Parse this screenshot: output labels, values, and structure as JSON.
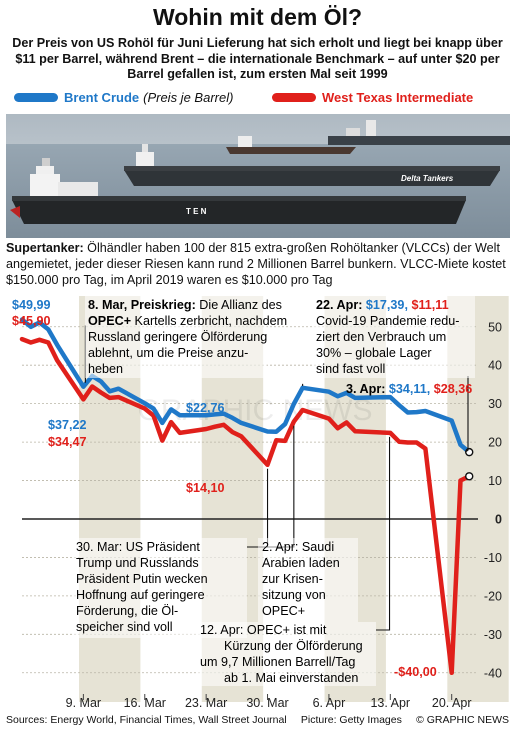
{
  "title": "Wohin mit dem Öl?",
  "subtitle": "Der Preis von US Rohöl für Juni Lieferung hat sich erholt und liegt bei knapp über $11 per Barrel, während Brent – die internationale Benchmark – auf unter $20 per Barrel gefallen ist, zum ersten Mal seit 1999",
  "legend": {
    "brent": "Brent Crude",
    "brent_note": "(Preis je Barrel)",
    "wti": "West Texas Intermediate"
  },
  "photo": {
    "ship_label_1": "Delta Tankers",
    "ship_label_2": "T  E  N"
  },
  "caption": {
    "lead": "Supertanker:",
    "text": " Ölhändler haben 100 der 815 extra-großen Rohöltanker (VLCCs) der Welt angemietet, jeder dieser Riesen kann rund 2 Millionen Barrel bunkern. VLCC-Miete kostet $150.000 pro Tag, im April 2019 waren es $10.000 pro Tag"
  },
  "annotations": {
    "a1_head": "8. Mar, Preiskrieg:",
    "a1_lines": [
      " Die Allianz des",
      "Kartells zerbricht, nachdem",
      "Russland geringere Ölförderung",
      "ablehnt, um die Preise anzu-",
      "heben"
    ],
    "a1_bold": "OPEC+",
    "a2_lines": [
      "30. Mar: US Präsident",
      "Trump und Russlands",
      "Präsident Putin wecken",
      "Hoffnung auf geringere",
      "Förderung, die Öl-",
      "speicher sind voll"
    ],
    "a3_lines": [
      "2. Apr: Saudi",
      "Arabien laden",
      "zur Krisen-",
      "sitzung von",
      "OPEC+"
    ],
    "a4_lines": [
      "12. Apr: OPEC+ ist mit",
      "Kürzung der Ölförderung",
      "um 9,7 Millionen Barrell/Tag",
      "ab 1. Mai einverstanden"
    ],
    "a5_head": "22. Apr:",
    "a5_brent": "$17,39,",
    "a5_wti": "$11,11",
    "a5_lines": [
      "Covid-19 Pandemie redu-",
      "ziert den Verbrauch um",
      "30% – globale Lager",
      "sind fast voll"
    ],
    "a6_head": "3. Apr:",
    "a6_brent": "$34,11,",
    "a6_wti": "$28,36"
  },
  "footer": {
    "sources": "Sources: Energy World, Financial Times, Wall Street Journal",
    "picture": "Picture: Getty Images",
    "credit": "© GRAPHIC NEWS"
  },
  "watermark": "GRAPHIC NEWS",
  "colors": {
    "brent": "#1f78c8",
    "wti": "#e0201b",
    "band": "#e6e3d5",
    "ship": "#2b2b2b"
  },
  "chart_data": {
    "type": "line",
    "ylim": [
      -45,
      58
    ],
    "yticks": [
      50,
      40,
      30,
      20,
      10,
      0,
      -10,
      -20,
      -30,
      -40
    ],
    "ytick_labels": [
      "50",
      "40",
      "30",
      "20",
      "10",
      "0",
      "-10",
      "-20",
      "-30",
      "-40"
    ],
    "x_labels": [
      "9. Mar",
      "16. Mar",
      "23. Mar",
      "30. Mar",
      "6. Apr",
      "13. Apr",
      "20. Apr"
    ],
    "x_label_dates": [
      "2020-03-09",
      "2020-03-16",
      "2020-03-23",
      "2020-03-30",
      "2020-04-06",
      "2020-04-13",
      "2020-04-20"
    ],
    "x_range": [
      "2020-03-02",
      "2020-04-23"
    ],
    "series": [
      {
        "name": "Brent Crude",
        "dates": [
          "2020-03-02",
          "2020-03-03",
          "2020-03-04",
          "2020-03-05",
          "2020-03-06",
          "2020-03-09",
          "2020-03-10",
          "2020-03-11",
          "2020-03-12",
          "2020-03-13",
          "2020-03-16",
          "2020-03-17",
          "2020-03-18",
          "2020-03-19",
          "2020-03-20",
          "2020-03-23",
          "2020-03-24",
          "2020-03-25",
          "2020-03-26",
          "2020-03-27",
          "2020-03-30",
          "2020-03-31",
          "2020-04-01",
          "2020-04-02",
          "2020-04-03",
          "2020-04-06",
          "2020-04-07",
          "2020-04-08",
          "2020-04-09",
          "2020-04-13",
          "2020-04-14",
          "2020-04-15",
          "2020-04-16",
          "2020-04-17",
          "2020-04-20",
          "2020-04-21",
          "2020-04-22"
        ],
        "values": [
          51.9,
          49.99,
          51.1,
          49.3,
          45.3,
          34.4,
          37.2,
          35.8,
          33.2,
          33.9,
          30.1,
          28.7,
          25.0,
          28.5,
          27.0,
          27.0,
          27.2,
          27.4,
          26.3,
          25.0,
          22.76,
          22.7,
          24.7,
          29.9,
          34.11,
          33.1,
          31.9,
          32.8,
          31.5,
          31.7,
          29.6,
          27.7,
          27.8,
          28.1,
          25.6,
          19.3,
          17.39
        ]
      },
      {
        "name": "West Texas Intermediate",
        "dates": [
          "2020-03-02",
          "2020-03-03",
          "2020-03-04",
          "2020-03-05",
          "2020-03-06",
          "2020-03-09",
          "2020-03-10",
          "2020-03-11",
          "2020-03-12",
          "2020-03-13",
          "2020-03-16",
          "2020-03-17",
          "2020-03-18",
          "2020-03-19",
          "2020-03-20",
          "2020-03-23",
          "2020-03-24",
          "2020-03-25",
          "2020-03-26",
          "2020-03-27",
          "2020-03-30",
          "2020-03-31",
          "2020-04-01",
          "2020-04-02",
          "2020-04-03",
          "2020-04-06",
          "2020-04-07",
          "2020-04-08",
          "2020-04-09",
          "2020-04-13",
          "2020-04-14",
          "2020-04-15",
          "2020-04-16",
          "2020-04-17",
          "2020-04-20",
          "2020-04-21",
          "2020-04-22"
        ],
        "values": [
          46.8,
          45.9,
          46.6,
          45.9,
          41.3,
          31.1,
          34.47,
          32.9,
          31.5,
          31.7,
          28.7,
          26.9,
          20.4,
          25.2,
          22.4,
          23.4,
          24.0,
          24.5,
          22.6,
          21.5,
          14.1,
          20.5,
          20.3,
          25.3,
          28.36,
          26.1,
          23.6,
          25.1,
          22.8,
          22.4,
          20.1,
          19.9,
          19.9,
          18.3,
          -40.0,
          10.0,
          11.11
        ]
      }
    ],
    "value_labels": [
      {
        "series": "Brent Crude",
        "date": "2020-03-03",
        "text": "$49,99"
      },
      {
        "series": "West Texas Intermediate",
        "date": "2020-03-03",
        "text": "$45,90"
      },
      {
        "series": "Brent Crude",
        "date": "2020-03-10",
        "text": "$37,22"
      },
      {
        "series": "West Texas Intermediate",
        "date": "2020-03-10",
        "text": "$34,47"
      },
      {
        "series": "Brent Crude",
        "date": "2020-03-30",
        "text": "$22,76"
      },
      {
        "series": "West Texas Intermediate",
        "date": "2020-03-30",
        "text": "$14,10"
      },
      {
        "series": "West Texas Intermediate",
        "date": "2020-04-20",
        "text": "-$40,00"
      }
    ]
  }
}
